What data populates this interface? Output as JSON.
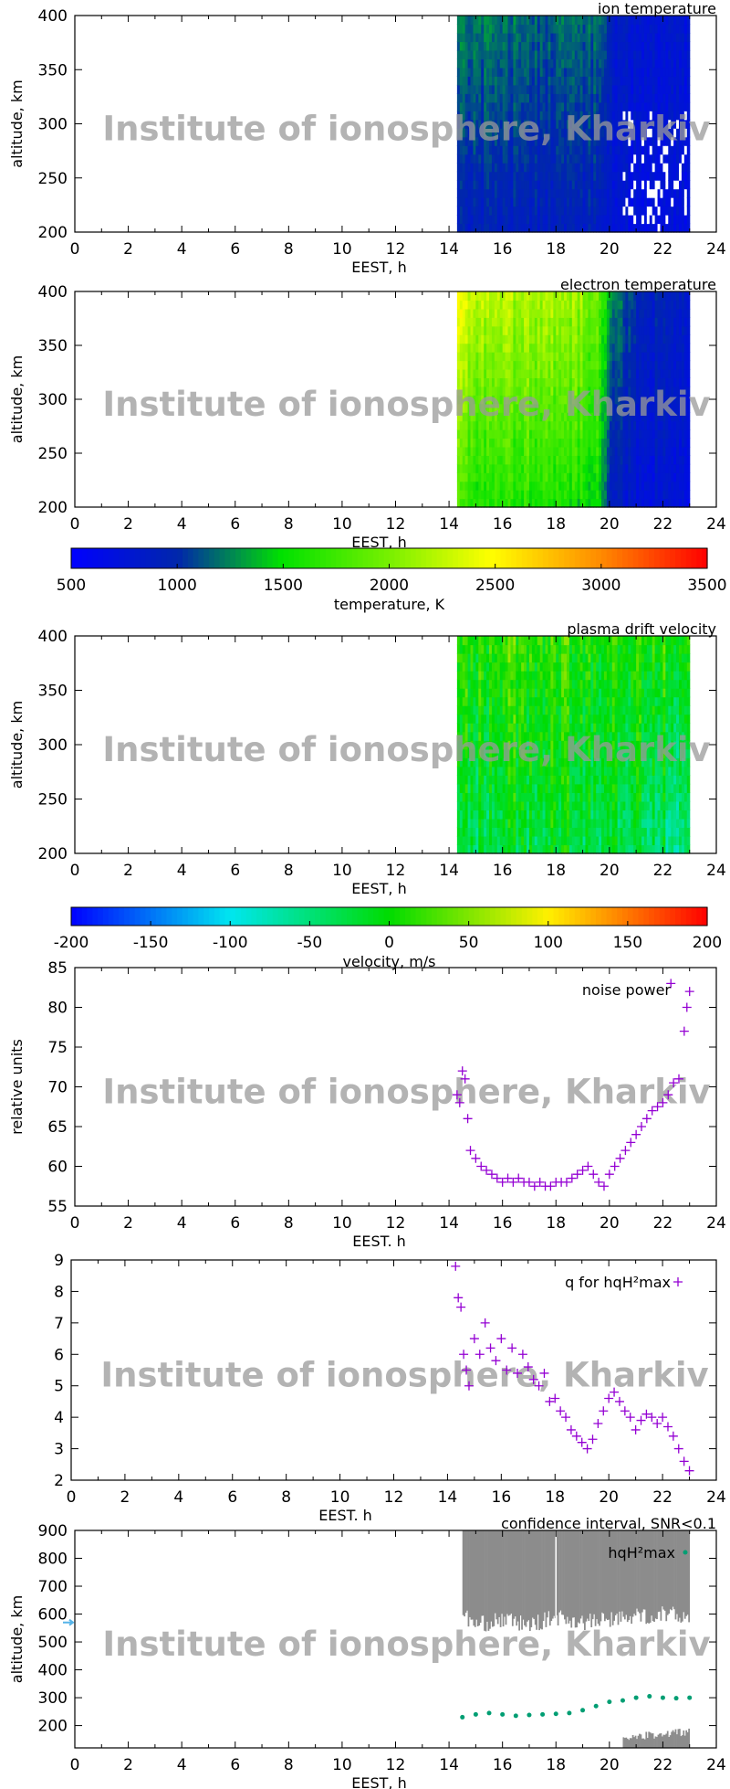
{
  "watermark": "Institute of ionosphere, Kharkiv",
  "chart_data": [
    {
      "type": "heatmap",
      "title": "ion temperature",
      "xlabel": "EEST, h",
      "ylabel": "altitude, km",
      "xlim": [
        0,
        24
      ],
      "ylim": [
        200,
        400
      ],
      "xticks": [
        0,
        2,
        4,
        6,
        8,
        10,
        12,
        14,
        16,
        18,
        20,
        22,
        24
      ],
      "yticks": [
        200,
        250,
        300,
        350,
        400
      ],
      "colorbar": "temperature",
      "profile": {
        "time_h": [
          14.3,
          15,
          16,
          17,
          18,
          19,
          19.8,
          20,
          21,
          22,
          23
        ],
        "value_200km": [
          950,
          900,
          900,
          880,
          900,
          900,
          900,
          800,
          700,
          700,
          700
        ],
        "value_400km": [
          1300,
          1200,
          1200,
          1150,
          1200,
          1200,
          1200,
          900,
          800,
          800,
          800
        ]
      }
    },
    {
      "type": "heatmap",
      "title": "electron temperature",
      "xlabel": "EEST, h",
      "ylabel": "altitude, km",
      "xlim": [
        0,
        24
      ],
      "ylim": [
        200,
        400
      ],
      "xticks": [
        0,
        2,
        4,
        6,
        8,
        10,
        12,
        14,
        16,
        18,
        20,
        22,
        24
      ],
      "yticks": [
        200,
        250,
        300,
        350,
        400
      ],
      "colorbar": "temperature",
      "profile": {
        "time_h": [
          14.3,
          15,
          16,
          17,
          18,
          19,
          19.6,
          20,
          21,
          22,
          23
        ],
        "value_200km": [
          1700,
          1650,
          1600,
          1600,
          1600,
          1550,
          1450,
          900,
          750,
          750,
          750
        ],
        "value_400km": [
          2400,
          2300,
          2250,
          2200,
          2200,
          2100,
          1900,
          1300,
          1000,
          900,
          900
        ]
      }
    },
    {
      "type": "colorbar",
      "label": "temperature, K",
      "range": [
        500,
        3500
      ],
      "ticks": [
        500,
        1000,
        1500,
        2000,
        2500,
        3000,
        3500
      ]
    },
    {
      "type": "heatmap",
      "title": "plasma drift velocity",
      "xlabel": "EEST, h",
      "ylabel": "altitude, km",
      "xlim": [
        0,
        24
      ],
      "ylim": [
        200,
        400
      ],
      "xticks": [
        0,
        2,
        4,
        6,
        8,
        10,
        12,
        14,
        16,
        18,
        20,
        22,
        24
      ],
      "yticks": [
        200,
        250,
        300,
        350,
        400
      ],
      "colorbar": "velocity",
      "profile": {
        "time_h": [
          14.3,
          16,
          18,
          20,
          22,
          23
        ],
        "value_200km": [
          -30,
          -20,
          -20,
          -25,
          -40,
          -50
        ],
        "value_400km": [
          10,
          20,
          15,
          10,
          10,
          5
        ]
      }
    },
    {
      "type": "colorbar",
      "label": "velocity, m/s",
      "range": [
        -200,
        200
      ],
      "ticks": [
        -200,
        -150,
        -100,
        -50,
        0,
        50,
        100,
        150,
        200
      ]
    },
    {
      "type": "scatter",
      "legend": "noise power",
      "xlabel": "EEST. h",
      "ylabel": "relative units",
      "xlim": [
        0,
        24
      ],
      "ylim": [
        55,
        85
      ],
      "xticks": [
        0,
        2,
        4,
        6,
        8,
        10,
        12,
        14,
        16,
        18,
        20,
        22,
        24
      ],
      "yticks": [
        55,
        60,
        65,
        70,
        75,
        80,
        85
      ],
      "color": "#9400d3",
      "x": [
        14.3,
        14.4,
        14.5,
        14.6,
        14.7,
        14.8,
        15.0,
        15.2,
        15.4,
        15.6,
        15.8,
        16.0,
        16.2,
        16.4,
        16.6,
        16.8,
        17.0,
        17.2,
        17.4,
        17.6,
        17.8,
        18.0,
        18.2,
        18.4,
        18.6,
        18.8,
        19.0,
        19.2,
        19.4,
        19.6,
        19.8,
        20.0,
        20.2,
        20.4,
        20.6,
        20.8,
        21.0,
        21.2,
        21.4,
        21.6,
        21.8,
        22.0,
        22.2,
        22.3,
        22.4,
        22.6,
        22.8,
        22.9,
        23.0
      ],
      "y": [
        69,
        68,
        72,
        71,
        66,
        62,
        61,
        60,
        59.5,
        59,
        58.5,
        58,
        58.5,
        58,
        58.5,
        58,
        58,
        57.5,
        58,
        57.5,
        57.5,
        58,
        58,
        58,
        58.5,
        59,
        59.5,
        60,
        59,
        58,
        57.5,
        59,
        60,
        61,
        62,
        63,
        64,
        65,
        66,
        67,
        67.5,
        68,
        69,
        83,
        70.5,
        71,
        77,
        80,
        82
      ]
    },
    {
      "type": "scatter",
      "legend": "q for hqH²max",
      "xlabel": "EEST. h",
      "ylabel": "",
      "xlim": [
        0,
        24
      ],
      "ylim": [
        2,
        9
      ],
      "xticks": [
        0,
        2,
        4,
        6,
        8,
        10,
        12,
        14,
        16,
        18,
        20,
        22,
        24
      ],
      "yticks": [
        2,
        3,
        4,
        5,
        6,
        7,
        8,
        9
      ],
      "color": "#9400d3",
      "x": [
        14.3,
        14.4,
        14.5,
        14.6,
        14.7,
        14.8,
        15.0,
        15.2,
        15.4,
        15.6,
        15.8,
        16.0,
        16.2,
        16.4,
        16.6,
        16.8,
        17.0,
        17.2,
        17.4,
        17.6,
        17.8,
        18.0,
        18.2,
        18.4,
        18.6,
        18.8,
        19.0,
        19.2,
        19.4,
        19.6,
        19.8,
        20.0,
        20.2,
        20.4,
        20.6,
        20.8,
        21.0,
        21.2,
        21.4,
        21.6,
        21.8,
        22.0,
        22.2,
        22.4,
        22.6,
        22.8,
        23.0
      ],
      "y": [
        8.8,
        7.8,
        7.5,
        6.0,
        5.5,
        5.0,
        6.5,
        6.0,
        7.0,
        6.2,
        5.8,
        6.5,
        5.5,
        6.2,
        5.4,
        6.0,
        5.6,
        5.2,
        5.0,
        5.4,
        4.5,
        4.6,
        4.2,
        4.0,
        3.6,
        3.4,
        3.2,
        3.0,
        3.3,
        3.8,
        4.2,
        4.6,
        4.8,
        4.5,
        4.2,
        4.0,
        3.6,
        3.9,
        4.1,
        4.0,
        3.8,
        4.0,
        3.7,
        3.4,
        3.0,
        2.6,
        2.3
      ]
    },
    {
      "type": "scatter",
      "title": "confidence interval, SNR<0.1",
      "legend": "hqH²max",
      "xlabel": "EEST, h",
      "ylabel": "altitude, km",
      "xlim": [
        0,
        24
      ],
      "ylim": [
        120,
        900
      ],
      "xticks": [
        0,
        2,
        4,
        6,
        8,
        10,
        12,
        14,
        16,
        18,
        20,
        22,
        24
      ],
      "yticks": [
        200,
        300,
        400,
        500,
        600,
        700,
        800,
        900
      ],
      "color": "#009e73",
      "band_color": "#8c8c8c",
      "x": [
        14.5,
        15,
        15.5,
        16,
        16.5,
        17,
        17.5,
        18,
        18.5,
        19,
        19.5,
        20,
        20.5,
        21,
        21.5,
        22,
        22.5,
        23
      ],
      "y": [
        230,
        240,
        245,
        240,
        235,
        238,
        240,
        242,
        245,
        255,
        270,
        285,
        290,
        300,
        305,
        300,
        298,
        300
      ],
      "band_upper": {
        "time_h": [
          14.5,
          15,
          16,
          17,
          18,
          19,
          20,
          21,
          22,
          23
        ],
        "lower_km": [
          600,
          560,
          580,
          560,
          590,
          570,
          580,
          590,
          600,
          590
        ]
      },
      "band_lower": {
        "time_h": [
          20.5,
          21,
          22,
          23
        ],
        "upper_km": [
          150,
          160,
          170,
          180
        ]
      }
    }
  ]
}
